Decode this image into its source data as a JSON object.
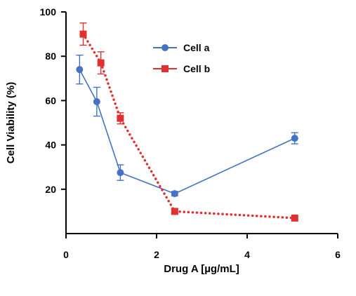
{
  "chart_data": {
    "type": "line",
    "xlabel": "Drug A [µg/mL]",
    "ylabel": "Cell Viability (%)",
    "xlim": [
      0,
      6
    ],
    "ylim": [
      0,
      100
    ],
    "x_ticks": [
      0,
      2,
      4,
      6
    ],
    "y_ticks": [
      20,
      40,
      60,
      80,
      100
    ],
    "grid": false,
    "legend_position": "top-center",
    "series": [
      {
        "name": "Cell a",
        "color": "#4472C4",
        "marker": "circle",
        "line_style": "solid",
        "x": [
          0.3,
          0.68,
          1.2,
          2.4,
          5.05
        ],
        "y": [
          74,
          59.5,
          27.5,
          18,
          43
        ],
        "error": [
          6.5,
          6.5,
          3.5,
          1,
          2.5
        ]
      },
      {
        "name": "Cell b",
        "color": "#E03030",
        "marker": "square",
        "line_style": "dotted",
        "x": [
          0.38,
          0.77,
          1.2,
          2.4,
          5.05
        ],
        "y": [
          90,
          77,
          52,
          10,
          7
        ],
        "error": [
          5,
          5,
          2.5,
          1,
          0.5
        ]
      }
    ]
  }
}
